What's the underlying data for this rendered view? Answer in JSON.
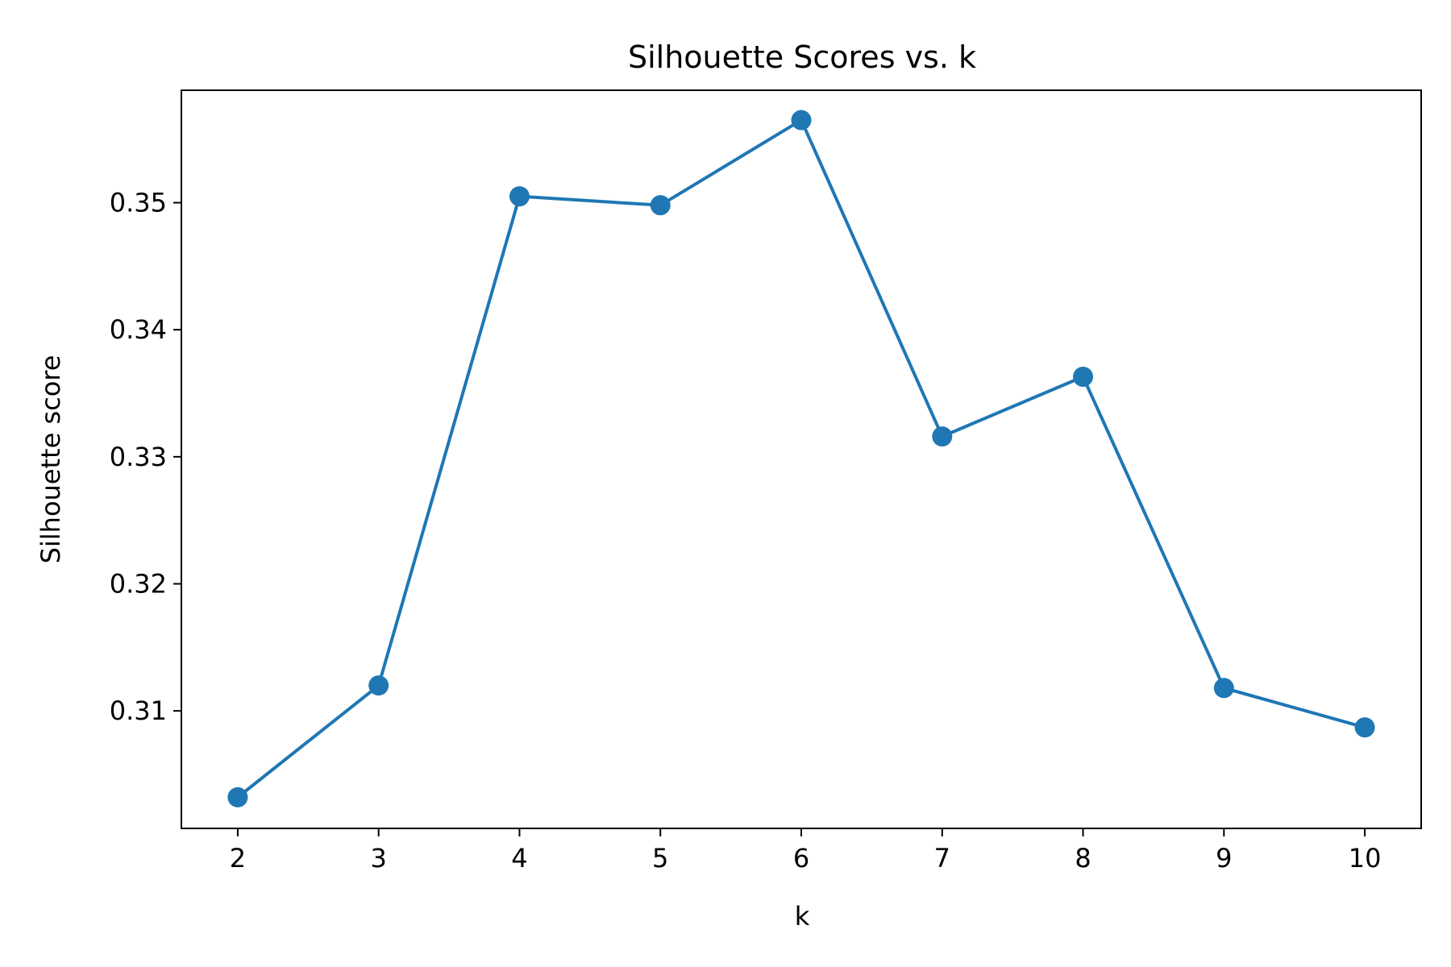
{
  "chart_data": {
    "type": "line",
    "title": "Silhouette Scores vs. k",
    "xlabel": "k",
    "ylabel": "Silhouette score",
    "x": [
      2,
      3,
      4,
      5,
      6,
      7,
      8,
      9,
      10
    ],
    "series": [
      {
        "values": [
          0.3032,
          0.312,
          0.3505,
          0.3498,
          0.3565,
          0.3316,
          0.3363,
          0.3118,
          0.3087
        ],
        "color": "#1f77b4",
        "marker": "circle"
      }
    ],
    "xticks": [
      "2",
      "3",
      "4",
      "5",
      "6",
      "7",
      "8",
      "9",
      "10"
    ],
    "yticks": [
      "0.31",
      "0.32",
      "0.33",
      "0.34",
      "0.35"
    ],
    "ytick_values": [
      0.31,
      0.32,
      0.33,
      0.34,
      0.35
    ],
    "xlim": [
      1.6,
      10.4
    ],
    "ylim": [
      0.30075,
      0.35885
    ],
    "grid": false,
    "legend": false
  }
}
